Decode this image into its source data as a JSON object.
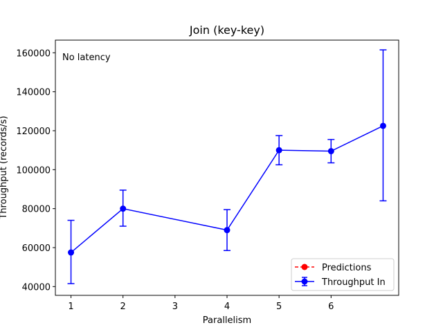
{
  "chart_data": {
    "type": "line",
    "title": "Join (key-key)",
    "xlabel": "Parallelism",
    "ylabel": "Throughput (records/s)",
    "annotation": "No latency",
    "x_tick_positions": [
      1,
      2,
      3,
      4,
      5,
      6
    ],
    "x_tick_labels": [
      "1",
      "2",
      "3",
      "4",
      "5",
      "6"
    ],
    "x_positions": [
      1,
      2,
      4,
      5,
      6,
      7
    ],
    "xlim": [
      0.7,
      7.3
    ],
    "ylim": [
      35500,
      166500
    ],
    "y_ticks": [
      40000,
      60000,
      80000,
      100000,
      120000,
      140000,
      160000
    ],
    "y_tick_labels": [
      "40000",
      "60000",
      "80000",
      "100000",
      "120000",
      "140000",
      "160000"
    ],
    "grid": false,
    "legend_position": "lower-right",
    "series": [
      {
        "name": "Predictions",
        "color": "#ff0000",
        "style": "dashed",
        "marker": "circle",
        "values": []
      },
      {
        "name": "Throughput In",
        "color": "#0000ff",
        "style": "solid",
        "marker": "circle",
        "values": [
          57500,
          80000,
          69000,
          110000,
          109500,
          122500
        ],
        "err_low": [
          41500,
          71000,
          58500,
          102500,
          103500,
          84000
        ],
        "err_high": [
          74000,
          89500,
          79500,
          117500,
          115500,
          161500
        ]
      }
    ]
  }
}
